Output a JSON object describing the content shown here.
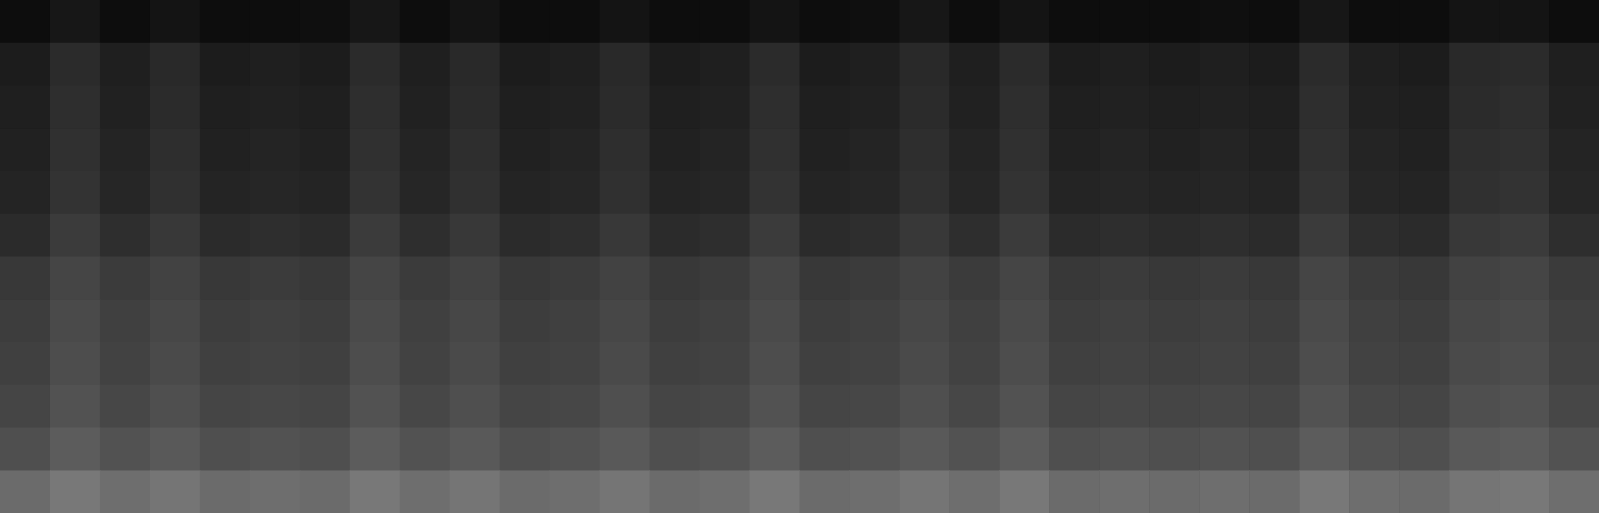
{
  "chart_data": {
    "type": "heatmap",
    "xlim": [
      0,
      32
    ],
    "ylim": [
      0,
      12
    ],
    "zlim": [
      0,
      1
    ],
    "tick_labels": false,
    "cells": [
      [
        0.05,
        0.09,
        0.05,
        0.08,
        0.05,
        0.05,
        0.06,
        0.09,
        0.05,
        0.08,
        0.05,
        0.05,
        0.08,
        0.05,
        0.05,
        0.08,
        0.05,
        0.06,
        0.09,
        0.05,
        0.08,
        0.05,
        0.05,
        0.05,
        0.06,
        0.05,
        0.09,
        0.05,
        0.05,
        0.08,
        0.08,
        0.05
      ],
      [
        0.11,
        0.17,
        0.12,
        0.16,
        0.11,
        0.12,
        0.11,
        0.17,
        0.12,
        0.16,
        0.11,
        0.12,
        0.16,
        0.11,
        0.12,
        0.17,
        0.11,
        0.12,
        0.16,
        0.12,
        0.17,
        0.11,
        0.12,
        0.11,
        0.12,
        0.11,
        0.17,
        0.12,
        0.11,
        0.16,
        0.17,
        0.12
      ],
      [
        0.12,
        0.18,
        0.13,
        0.17,
        0.12,
        0.13,
        0.12,
        0.18,
        0.13,
        0.17,
        0.12,
        0.13,
        0.17,
        0.12,
        0.13,
        0.18,
        0.12,
        0.13,
        0.17,
        0.13,
        0.18,
        0.12,
        0.13,
        0.12,
        0.13,
        0.12,
        0.18,
        0.13,
        0.12,
        0.17,
        0.18,
        0.13
      ],
      [
        0.13,
        0.19,
        0.14,
        0.18,
        0.13,
        0.14,
        0.13,
        0.19,
        0.14,
        0.18,
        0.13,
        0.14,
        0.18,
        0.13,
        0.14,
        0.19,
        0.13,
        0.14,
        0.18,
        0.14,
        0.19,
        0.13,
        0.14,
        0.13,
        0.14,
        0.13,
        0.19,
        0.14,
        0.13,
        0.18,
        0.19,
        0.14
      ],
      [
        0.14,
        0.2,
        0.15,
        0.19,
        0.14,
        0.15,
        0.14,
        0.2,
        0.15,
        0.19,
        0.14,
        0.15,
        0.19,
        0.14,
        0.15,
        0.2,
        0.14,
        0.15,
        0.19,
        0.15,
        0.2,
        0.14,
        0.15,
        0.14,
        0.15,
        0.14,
        0.2,
        0.15,
        0.14,
        0.19,
        0.2,
        0.15
      ],
      [
        0.17,
        0.23,
        0.18,
        0.22,
        0.17,
        0.18,
        0.17,
        0.23,
        0.18,
        0.22,
        0.17,
        0.18,
        0.22,
        0.17,
        0.18,
        0.23,
        0.17,
        0.18,
        0.22,
        0.18,
        0.23,
        0.17,
        0.18,
        0.17,
        0.18,
        0.17,
        0.23,
        0.18,
        0.17,
        0.22,
        0.23,
        0.18
      ],
      [
        0.22,
        0.27,
        0.23,
        0.26,
        0.22,
        0.23,
        0.22,
        0.27,
        0.23,
        0.26,
        0.22,
        0.23,
        0.26,
        0.22,
        0.23,
        0.27,
        0.22,
        0.23,
        0.26,
        0.23,
        0.27,
        0.22,
        0.23,
        0.22,
        0.23,
        0.22,
        0.27,
        0.23,
        0.22,
        0.26,
        0.27,
        0.23
      ],
      [
        0.24,
        0.29,
        0.25,
        0.28,
        0.24,
        0.25,
        0.24,
        0.29,
        0.25,
        0.28,
        0.24,
        0.25,
        0.28,
        0.24,
        0.25,
        0.29,
        0.24,
        0.25,
        0.28,
        0.25,
        0.29,
        0.24,
        0.25,
        0.24,
        0.25,
        0.24,
        0.29,
        0.25,
        0.24,
        0.28,
        0.29,
        0.25
      ],
      [
        0.25,
        0.3,
        0.26,
        0.29,
        0.25,
        0.26,
        0.25,
        0.3,
        0.26,
        0.29,
        0.25,
        0.26,
        0.29,
        0.25,
        0.26,
        0.3,
        0.25,
        0.26,
        0.29,
        0.26,
        0.3,
        0.25,
        0.26,
        0.25,
        0.26,
        0.25,
        0.3,
        0.26,
        0.25,
        0.29,
        0.3,
        0.26
      ],
      [
        0.27,
        0.32,
        0.28,
        0.31,
        0.27,
        0.28,
        0.27,
        0.32,
        0.28,
        0.31,
        0.27,
        0.28,
        0.31,
        0.27,
        0.28,
        0.32,
        0.27,
        0.28,
        0.31,
        0.28,
        0.32,
        0.27,
        0.28,
        0.27,
        0.28,
        0.27,
        0.32,
        0.28,
        0.27,
        0.31,
        0.32,
        0.28
      ],
      [
        0.31,
        0.36,
        0.32,
        0.35,
        0.31,
        0.32,
        0.31,
        0.36,
        0.32,
        0.35,
        0.31,
        0.32,
        0.35,
        0.31,
        0.32,
        0.36,
        0.31,
        0.32,
        0.35,
        0.32,
        0.36,
        0.31,
        0.32,
        0.31,
        0.32,
        0.31,
        0.36,
        0.32,
        0.31,
        0.35,
        0.36,
        0.32
      ],
      [
        0.42,
        0.47,
        0.43,
        0.46,
        0.42,
        0.43,
        0.42,
        0.47,
        0.43,
        0.46,
        0.42,
        0.43,
        0.46,
        0.42,
        0.43,
        0.47,
        0.42,
        0.43,
        0.46,
        0.43,
        0.47,
        0.42,
        0.43,
        0.42,
        0.43,
        0.42,
        0.47,
        0.43,
        0.42,
        0.46,
        0.47,
        0.43
      ]
    ]
  }
}
